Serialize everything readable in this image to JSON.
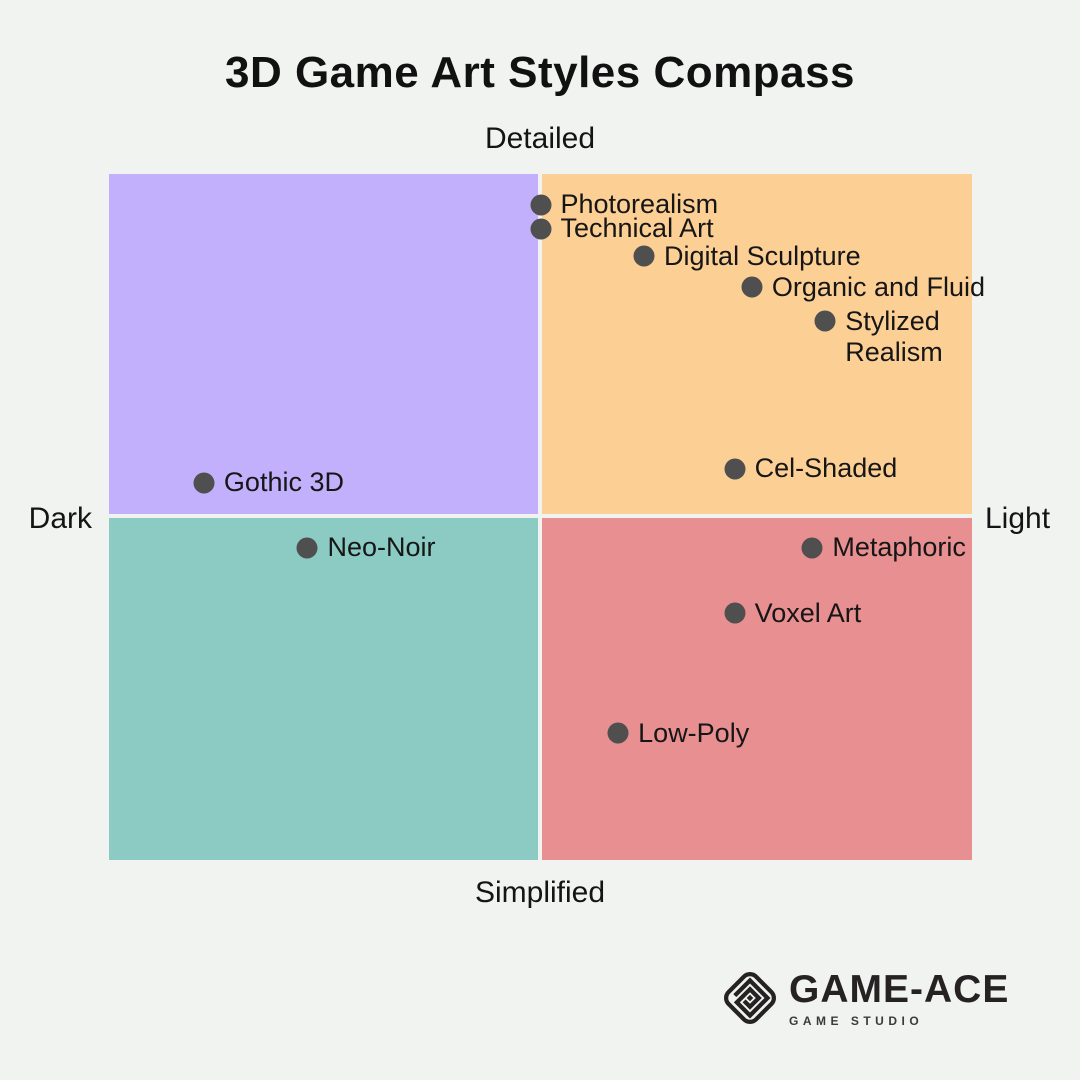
{
  "title": "3D Game Art Styles Compass",
  "colors": {
    "background": "#f1f3f1",
    "text": "#161616",
    "dot": "#4f4f4f",
    "quadrants": {
      "top_left": "#c2b0fc",
      "top_right": "#fccf94",
      "bottom_left": "#8ccbc3",
      "bottom_right": "#e78f91"
    }
  },
  "chart_data": {
    "type": "scatter",
    "subtype": "quadrant-compass",
    "title": "3D Game Art Styles Compass",
    "grid": false,
    "legend": false,
    "x_axis": {
      "left_label": "Dark",
      "right_label": "Light",
      "range": [
        -1,
        1
      ]
    },
    "y_axis": {
      "bottom_label": "Simplified",
      "top_label": "Detailed",
      "range": [
        -1,
        1
      ]
    },
    "points": [
      {
        "label": "Photorealism",
        "x": 0.0,
        "y": 0.91
      },
      {
        "label": "Technical Art",
        "x": 0.0,
        "y": 0.84
      },
      {
        "label": "Digital Sculpture",
        "x": 0.24,
        "y": 0.76
      },
      {
        "label": "Organic and Fluid",
        "x": 0.49,
        "y": 0.67
      },
      {
        "label": "Stylized Realism",
        "x": 0.66,
        "y": 0.57,
        "label_lines": [
          "Stylized",
          "Realism"
        ]
      },
      {
        "label": "Cel-Shaded",
        "x": 0.45,
        "y": 0.14
      },
      {
        "label": "Gothic 3D",
        "x": -0.78,
        "y": 0.1
      },
      {
        "label": "Neo-Noir",
        "x": -0.54,
        "y": -0.09
      },
      {
        "label": "Metaphoric",
        "x": 0.63,
        "y": -0.09
      },
      {
        "label": "Voxel Art",
        "x": 0.45,
        "y": -0.28
      },
      {
        "label": "Low-Poly",
        "x": 0.18,
        "y": -0.63
      }
    ]
  },
  "logo": {
    "brand": "GAME-ACE",
    "subtitle": "GAME STUDIO",
    "icon": "game-ace-diamond-icon"
  }
}
